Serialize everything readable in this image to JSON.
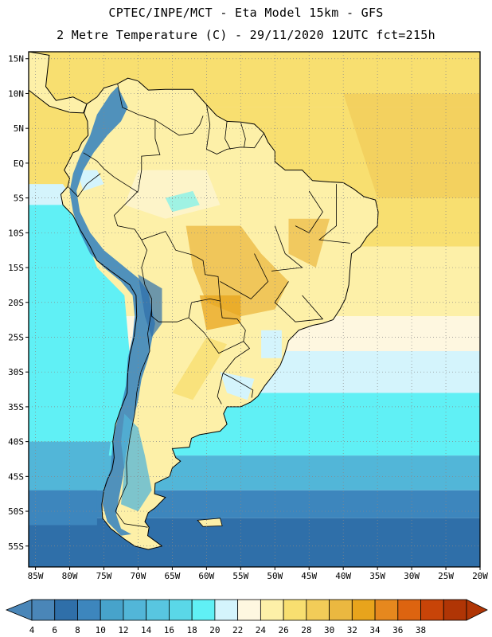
{
  "header": {
    "line1": "CPTEC/INPE/MCT -  Eta Model 15km - GFS",
    "line2": "2 Metre Temperature (C) - 29/11/2020 12UTC fct=215h"
  },
  "map": {
    "lat_labels": [
      "15N",
      "10N",
      "5N",
      "EQ",
      "5S",
      "10S",
      "15S",
      "20S",
      "25S",
      "30S",
      "35S",
      "40S",
      "45S",
      "50S",
      "55S"
    ],
    "lon_labels": [
      "85W",
      "80W",
      "75W",
      "70W",
      "65W",
      "60W",
      "55W",
      "50W",
      "45W",
      "40W",
      "35W",
      "30W",
      "25W",
      "20W"
    ],
    "lat_range": [
      -58,
      16
    ],
    "lon_range": [
      -86,
      -20
    ],
    "grid": "dotted"
  },
  "colorbar": {
    "labels": [
      "4",
      "6",
      "8",
      "10",
      "12",
      "14",
      "16",
      "18",
      "20",
      "22",
      "24",
      "26",
      "28",
      "30",
      "32",
      "34",
      "36",
      "38"
    ],
    "colors": [
      "#4a86b8",
      "#2f6fa9",
      "#3d86bd",
      "#47a3cb",
      "#52b6d8",
      "#58c6e0",
      "#5ad7e8",
      "#60f0f5",
      "#d4f4fc",
      "#fef7e0",
      "#fdf0a8",
      "#f8df70",
      "#f2cc58",
      "#ebb840",
      "#e8a41c",
      "#e6881e",
      "#dd6410",
      "#c84408",
      "#b03505"
    ],
    "low_arrow": "#4a86b8",
    "high_arrow": "#b03505"
  },
  "palette": {
    "ocean_north": "#f8df70",
    "ocean_mid": "#fdf0a8",
    "ocean_pale": "#fef7e0",
    "ocean_lightblue": "#d4f4fc",
    "ocean_cyan": "#60f0f5",
    "ocean_teal": "#52b6d8",
    "ocean_blue": "#3d86bd",
    "ocean_deep": "#2f6fa9",
    "land_warm": "#fdf0a8",
    "land_hot": "#ebb840",
    "andes": "#3d86bd",
    "andes_peak": "#2f6fa9",
    "patagonia": "#52b6d8",
    "border": "#000000"
  }
}
